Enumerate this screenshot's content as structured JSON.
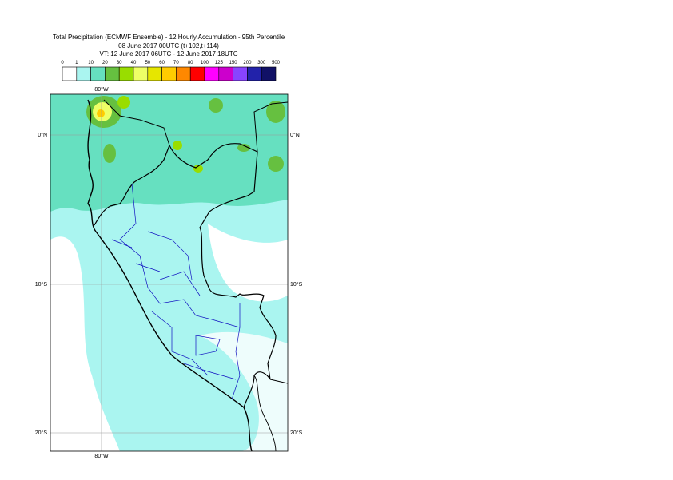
{
  "title": [
    "Total Precipitation (ECMWF Ensemble) - 12 Hourly Accumulation - 95th Percentile",
    "08 June 2017 00UTC (t+102,t+114)",
    "VT: 12 June 2017 06UTC - 12 June 2017 18UTC"
  ],
  "legend": {
    "labels": [
      "0",
      "1",
      "10",
      "20",
      "30",
      "40",
      "50",
      "60",
      "70",
      "80",
      "100",
      "125",
      "150",
      "200",
      "300",
      "500"
    ],
    "colors": [
      "#ffffff",
      "#aaf5f0",
      "#66e0c0",
      "#66c040",
      "#99dd00",
      "#eeff66",
      "#e6e600",
      "#ffcc00",
      "#ff8800",
      "#ff0000",
      "#ff00ff",
      "#cc00cc",
      "#8844ff",
      "#2222aa",
      "#111166"
    ]
  },
  "lon_labels": [
    "80°W"
  ],
  "lat_labels": [
    "0°N",
    "10°S",
    "20°S"
  ]
}
